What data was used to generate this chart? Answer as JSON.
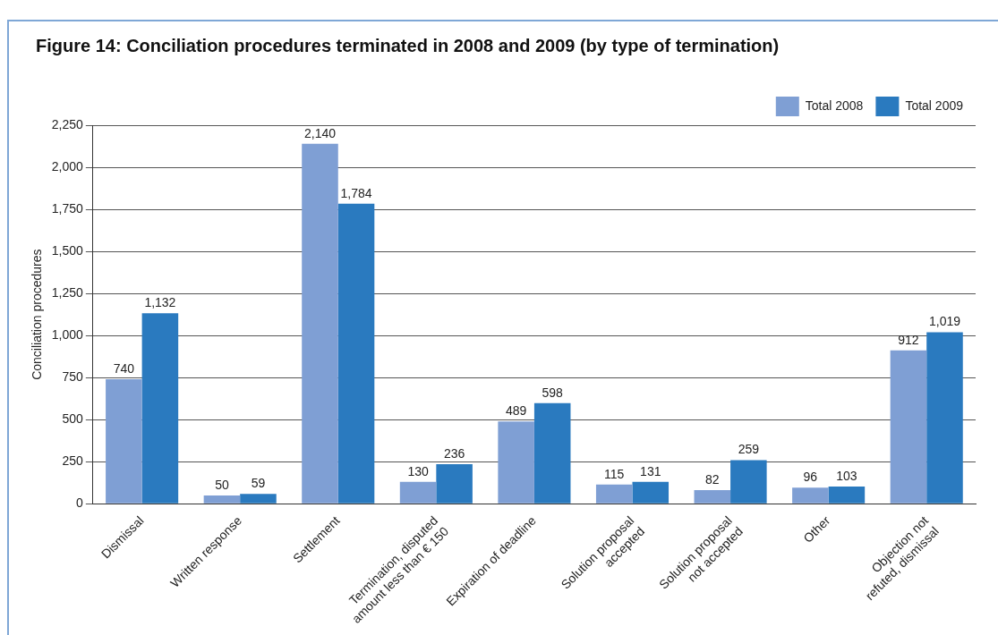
{
  "chart_data": {
    "type": "bar",
    "title": "Figure 14:  Conciliation procedures terminated in 2008 and 2009 (by type of termination)",
    "ylabel": "Conciliation procedures",
    "categories": [
      "Dismissal",
      "Written response",
      "Settlement",
      "Termination, disputed\namount less than € 150",
      "Expiration of deadline",
      "Solution proposal\naccepted",
      "Solution proposal\nnot accepted",
      "Other",
      "Objection not\nrefuted, dismissal"
    ],
    "series": [
      {
        "name": "Total 2008",
        "color": "#7f9fd4",
        "values": [
          740,
          50,
          2140,
          130,
          489,
          115,
          82,
          96,
          912
        ],
        "value_labels": [
          "740",
          "50",
          "2,140",
          "130",
          "489",
          "115",
          "82",
          "96",
          "912"
        ]
      },
      {
        "name": "Total 2009",
        "color": "#2a7abf",
        "values": [
          1132,
          59,
          1784,
          236,
          598,
          131,
          259,
          103,
          1019
        ],
        "value_labels": [
          "1,132",
          "59",
          "1,784",
          "236",
          "598",
          "131",
          "259",
          "103",
          "1,019"
        ]
      }
    ],
    "ylim": [
      0,
      2250
    ],
    "yticks": [
      0,
      {
        "value": 250,
        "label": "250"
      },
      {
        "value": 500,
        "label": "500"
      },
      {
        "value": 750,
        "label": "750"
      },
      {
        "value": 1000,
        "label": "1,000"
      },
      {
        "value": 1250,
        "label": "1,250"
      },
      {
        "value": 1500,
        "label": "1,500"
      },
      {
        "value": 1750,
        "label": "1,750"
      },
      {
        "value": 2000,
        "label": "2,000"
      },
      {
        "value": 2250,
        "label": "2,250"
      }
    ],
    "grid": "y",
    "legend": "top right"
  }
}
